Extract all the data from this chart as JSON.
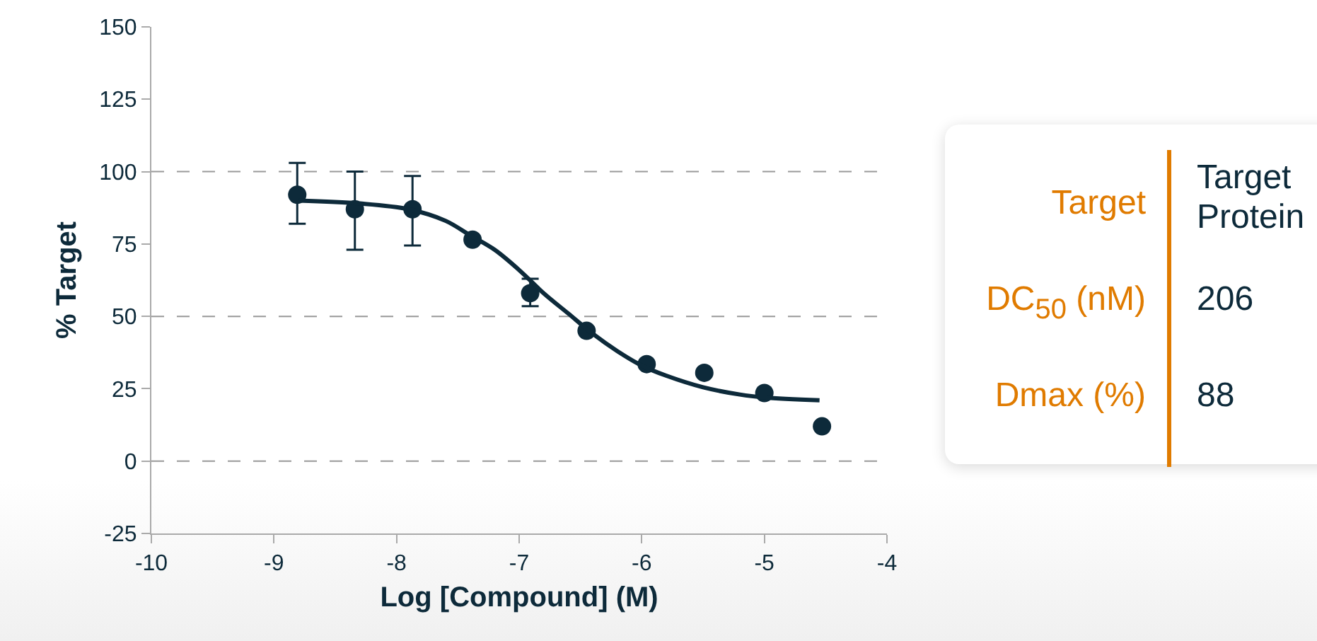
{
  "chart_data": {
    "type": "scatter",
    "xlabel": "Log [Compound] (M)",
    "ylabel": "% Target",
    "xlim": [
      -10,
      -4
    ],
    "xticks": [
      -10,
      -9,
      -8,
      -7,
      -6,
      -5,
      -4
    ],
    "ylim": [
      -25,
      150
    ],
    "yticks": [
      -25,
      0,
      25,
      50,
      75,
      100,
      125,
      150
    ],
    "marker": "circle",
    "ref_lines": [
      {
        "axis": "y",
        "value": 0,
        "color": "#999999",
        "line_style": "dashed"
      },
      {
        "axis": "y",
        "value": 50,
        "color": "#999999",
        "line_style": "dashed"
      },
      {
        "axis": "y",
        "value": 100,
        "color": "#999999",
        "line_style": "dashed"
      }
    ],
    "series": [
      {
        "color": "#0d2a3a",
        "x": [
          -8.81,
          -8.34,
          -7.87,
          -7.38,
          -6.91,
          -6.45,
          -5.96,
          -5.49,
          -5.0,
          -4.53
        ],
        "values": [
          92,
          87,
          87,
          76.5,
          58,
          45,
          33.5,
          30.5,
          23.5,
          12
        ],
        "errors": [
          [
            82,
            103
          ],
          [
            73,
            100
          ],
          [
            74.5,
            98.5
          ],
          null,
          [
            53.5,
            63
          ],
          null,
          null,
          null,
          null,
          null
        ]
      },
      {
        "type": "line",
        "color": "#0d2a3a",
        "line_style": "solid",
        "marker": "none",
        "x": [
          -8.8,
          -8.3,
          -7.9,
          -7.6,
          -7.4,
          -7.2,
          -7.0,
          -6.8,
          -6.6,
          -6.4,
          -6.2,
          -6.0,
          -5.8,
          -5.5,
          -5.2,
          -5.0,
          -4.55
        ],
        "values": [
          90,
          89,
          87,
          83,
          78,
          73,
          66,
          58,
          51,
          44,
          38,
          33,
          29.5,
          25.5,
          23,
          22,
          21
        ]
      }
    ],
    "annotations": [
      "Target",
      "Target Protein",
      "DC$_{50}$ (nM)",
      "206",
      "Dmax (%)",
      "88"
    ]
  }
}
